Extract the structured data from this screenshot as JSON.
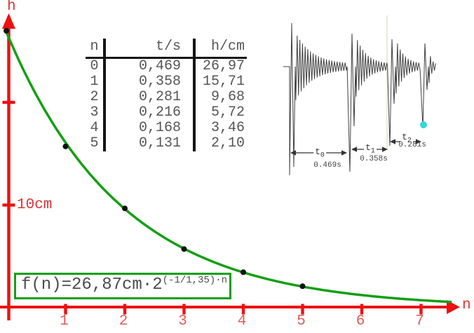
{
  "colors": {
    "axis": "#ee1111",
    "axis_text": "#e03333",
    "tick_text": "#e05b5b",
    "curve": "#12a012",
    "box_border": "#12a012",
    "table_text": "#565656",
    "table_rule": "#151515",
    "waveform": "#3f3f3f",
    "marker": "#35d8d8",
    "cursor_line": "#e7e2cc",
    "point": "#111111"
  },
  "chart_data": {
    "type": "scatter",
    "title": "",
    "xlabel": "n",
    "ylabel": "h",
    "x": [
      0,
      1,
      2,
      3,
      4,
      5
    ],
    "y": [
      26.97,
      15.71,
      9.68,
      5.72,
      3.46,
      2.1
    ],
    "x_ticks": [
      1,
      2,
      3,
      4,
      5,
      6,
      7
    ],
    "y_tick_values": [
      10,
      20
    ],
    "y_tick_label": "10cm",
    "xlim": [
      0,
      7.7
    ],
    "ylim": [
      0,
      30
    ],
    "grid": false,
    "legend": "none",
    "fit_curve": {
      "type": "exponential-decay",
      "a_cm": 26.87,
      "decay_constant": 1.35,
      "formula_text": "f(n)=26,87cm·2^((-1/1,35)·n)",
      "n_range": [
        0,
        7.5
      ]
    }
  },
  "table": {
    "headers": [
      "n",
      "t/s",
      "h/cm"
    ],
    "rows": [
      [
        "0",
        "0,469",
        "26,97"
      ],
      [
        "1",
        "0,358",
        "15,71"
      ],
      [
        "2",
        "0,281",
        "9,68"
      ],
      [
        "3",
        "0,216",
        "5,72"
      ],
      [
        "4",
        "0,168",
        "3,46"
      ],
      [
        "5",
        "0,131",
        "2,10"
      ]
    ]
  },
  "formula": {
    "base": "f(n)=26,87cm·2",
    "exponent": "(-1/1,35)·n"
  },
  "inset": {
    "annotations": [
      {
        "label": "t",
        "sub": "0",
        "time": "0.469s"
      },
      {
        "label": "t",
        "sub": "1",
        "time": "0.358s"
      },
      {
        "label": "t",
        "sub": "2",
        "time": "0.281s"
      }
    ]
  }
}
